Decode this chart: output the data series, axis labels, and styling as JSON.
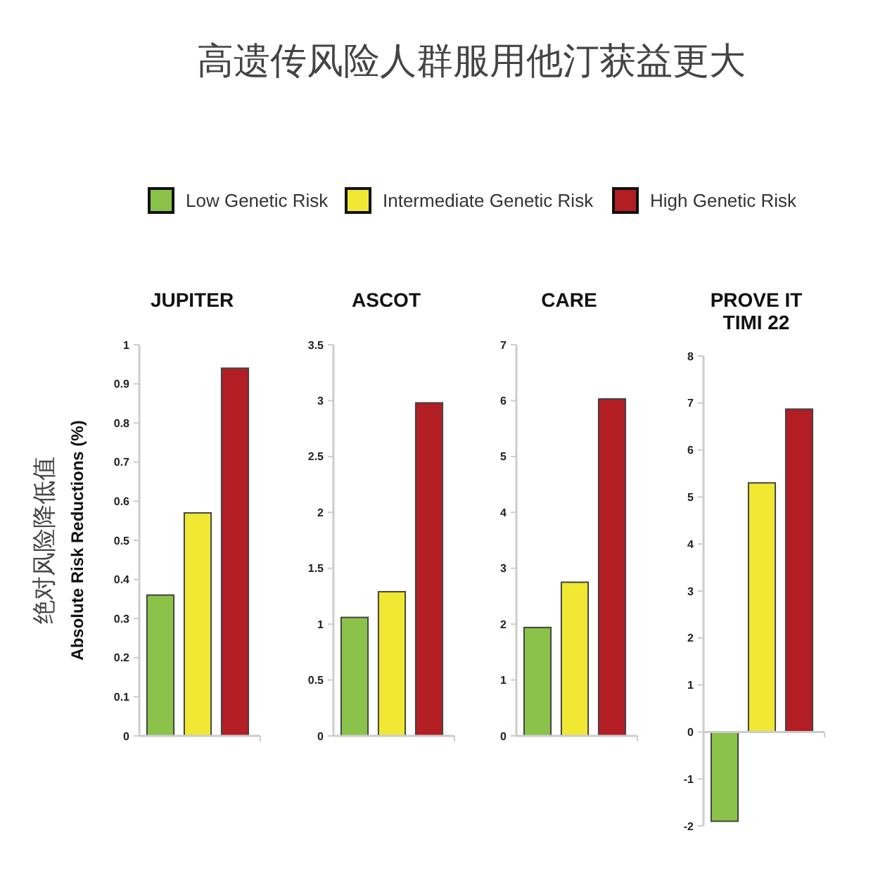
{
  "chart_data": [
    {
      "type": "other",
      "title": "高遗传风险人群服用他汀获益更大"
    },
    {
      "type": "bar",
      "title": "JUPITER",
      "ylabel": "绝对风险降低值\nAbsolute Risk Reductions (%)",
      "categories": [
        null
      ],
      "legend": "top",
      "ylim": [
        0,
        1
      ],
      "yticks": [
        0,
        0.1,
        0.2,
        0.3,
        0.4,
        0.5,
        0.6,
        0.7,
        0.8,
        0.9,
        1
      ],
      "grid": false,
      "series": [
        {
          "name": "Low Genetic Risk",
          "color": "#8bc34a",
          "values": [
            0.36
          ]
        },
        {
          "name": "Intermediate Genetic Risk",
          "color": "#f0e832",
          "values": [
            0.57
          ]
        },
        {
          "name": "High Genetic Risk",
          "color": "#b21e24",
          "values": [
            0.94
          ]
        }
      ]
    },
    {
      "type": "bar",
      "title": "ASCOT",
      "categories": [
        null
      ],
      "ylim": [
        0,
        3.5
      ],
      "yticks": [
        0,
        0.5,
        1,
        1.5,
        2,
        2.5,
        3,
        3.5
      ],
      "series": [
        {
          "color": "#8bc34a",
          "values": [
            1.06
          ]
        },
        {
          "color": "#f0e832",
          "values": [
            1.29
          ]
        },
        {
          "color": "#b21e24",
          "values": [
            2.98
          ]
        }
      ]
    },
    {
      "type": "bar",
      "title": "CARE",
      "categories": [
        null
      ],
      "ylim": [
        0,
        7
      ],
      "yticks": [
        0,
        1,
        2,
        3,
        4,
        5,
        6,
        7
      ],
      "series": [
        {
          "color": "#8bc34a",
          "values": [
            1.94
          ]
        },
        {
          "color": "#f0e832",
          "values": [
            2.75
          ]
        },
        {
          "color": "#b21e24",
          "values": [
            6.03
          ]
        }
      ]
    },
    {
      "type": "bar",
      "title": "PROVE IT\nTIMI 22",
      "categories": [
        null
      ],
      "ylim": [
        -2,
        8
      ],
      "yticks": [
        -2,
        -1,
        0,
        1,
        2,
        3,
        4,
        5,
        6,
        7,
        8
      ],
      "series": [
        {
          "color": "#8bc34a",
          "values": [
            -1.9
          ]
        },
        {
          "color": "#f0e832",
          "values": [
            5.3
          ]
        },
        {
          "color": "#b21e24",
          "values": [
            6.87
          ]
        }
      ]
    }
  ]
}
